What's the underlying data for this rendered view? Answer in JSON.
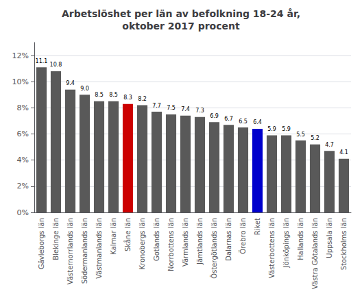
{
  "chart_data": {
    "type": "bar",
    "title": "Arbetslöshet per län av befolkning 18-24 år,\noktober 2017 procent",
    "categories": [
      "Gävleborgs län",
      "Blekinge län",
      "Västernorrlands län",
      "Södermanlands län",
      "Västmanlands län",
      "Kalmar län",
      "Skåne län",
      "Kronobergs län",
      "Gotlands län",
      "Norrbottens län",
      "Värmlands län",
      "Jämtlands län",
      "Östergötlands län",
      "Dalarnas län",
      "Örebro län",
      "Riket",
      "Västerbottens län",
      "Jönköpings län",
      "Hallands län",
      "Västra Götalands län",
      "Uppsala län",
      "Stockholms län"
    ],
    "values": [
      11.1,
      10.8,
      9.4,
      9.0,
      8.5,
      8.5,
      8.3,
      8.2,
      7.7,
      7.5,
      7.4,
      7.3,
      6.9,
      6.7,
      6.5,
      6.4,
      5.9,
      5.9,
      5.5,
      5.2,
      4.7,
      4.1
    ],
    "value_labels": [
      "11.1",
      "10.8",
      "9.4",
      "9.0",
      "8.5",
      "8.5",
      "8.3",
      "8.2",
      "7.7",
      "7.5",
      "7.4",
      "7.3",
      "6.9",
      "6.7",
      "6.5",
      "6.4",
      "5.9",
      "5.9",
      "5.5",
      "5.2",
      "4.7",
      "4.1"
    ],
    "colors": [
      "#595959",
      "#595959",
      "#595959",
      "#595959",
      "#595959",
      "#595959",
      "#cc0000",
      "#595959",
      "#595959",
      "#595959",
      "#595959",
      "#595959",
      "#595959",
      "#595959",
      "#595959",
      "#0000cc",
      "#595959",
      "#595959",
      "#595959",
      "#595959",
      "#595959",
      "#595959"
    ],
    "ylim": [
      0,
      13
    ],
    "yticks": [
      {
        "value": 0,
        "label": "0%"
      },
      {
        "value": 2,
        "label": "2%"
      },
      {
        "value": 4,
        "label": "4%"
      },
      {
        "value": 6,
        "label": "6%"
      },
      {
        "value": 8,
        "label": "8%"
      },
      {
        "value": 10,
        "label": "10%"
      },
      {
        "value": 12,
        "label": "12%"
      }
    ],
    "grid": true,
    "data_labels": true
  }
}
